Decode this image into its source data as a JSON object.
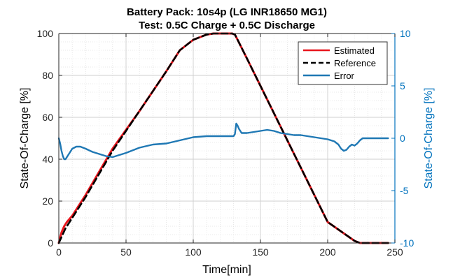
{
  "chart_data": {
    "type": "line",
    "title": [
      "Battery Pack: 10s4p (LG INR18650 MG1)",
      "Test: 0.5C Charge + 0.5C Discharge"
    ],
    "xlabel": "Time[min]",
    "ylabel_left": "State-Of-Charge [%]",
    "ylabel_right": "State-Of-Charge [%]",
    "xlim": [
      0,
      250
    ],
    "ylim_left": [
      0,
      100
    ],
    "ylim_right": [
      -10,
      10
    ],
    "xticks": [
      0,
      50,
      100,
      150,
      200,
      250
    ],
    "yticks_left": [
      0,
      20,
      40,
      60,
      80,
      100
    ],
    "yticks_right": [
      -10,
      -5,
      0,
      5,
      10
    ],
    "grid": true,
    "legend_position": "top-right",
    "colors": {
      "estimated": "#e8161d",
      "reference": "#000000",
      "error": "#1f78b4",
      "right_axis": "#0072bd",
      "grid": "#cfcfcf"
    },
    "series": [
      {
        "name": "Estimated",
        "axis": "left",
        "style": "solid",
        "x": [
          0,
          2,
          4,
          6,
          10,
          20,
          40,
          60,
          80,
          90,
          100,
          110,
          115,
          120,
          127,
          129,
          131,
          133,
          140,
          160,
          180,
          200,
          220,
          224,
          226,
          245
        ],
        "y": [
          0,
          5,
          8,
          10,
          13,
          23,
          45,
          63,
          82,
          92,
          97,
          99.5,
          100,
          100,
          100,
          100,
          99.5,
          97,
          88,
          62,
          36,
          10,
          1,
          0,
          0,
          0
        ]
      },
      {
        "name": "Reference",
        "axis": "left",
        "style": "dashed",
        "x": [
          0,
          5,
          10,
          20,
          40,
          60,
          80,
          90,
          100,
          110,
          115,
          120,
          127,
          129,
          131,
          133,
          140,
          160,
          180,
          200,
          220,
          224,
          226,
          245
        ],
        "y": [
          0,
          7,
          12,
          22,
          44,
          63,
          82,
          92,
          97,
          99.5,
          100,
          100,
          100,
          100,
          99.5,
          97,
          88,
          62,
          36,
          10,
          1,
          0,
          0,
          0
        ]
      },
      {
        "name": "Error",
        "axis": "right",
        "style": "solid",
        "x": [
          0,
          1,
          2,
          3,
          4,
          5,
          6,
          8,
          10,
          13,
          16,
          20,
          25,
          30,
          35,
          40,
          50,
          60,
          70,
          80,
          90,
          100,
          110,
          120,
          130,
          131,
          132,
          133,
          134,
          136,
          140,
          145,
          150,
          155,
          160,
          165,
          170,
          175,
          180,
          185,
          190,
          195,
          200,
          205,
          208,
          210,
          212,
          214,
          216,
          218,
          220,
          222,
          224,
          226,
          230,
          235,
          240,
          245
        ],
        "y": [
          0,
          -0.5,
          -1.2,
          -1.7,
          -2.0,
          -2.0,
          -1.8,
          -1.4,
          -1.0,
          -0.8,
          -0.8,
          -1.0,
          -1.3,
          -1.5,
          -1.7,
          -1.8,
          -1.4,
          -0.9,
          -0.6,
          -0.5,
          -0.2,
          0.1,
          0.2,
          0.2,
          0.2,
          0.4,
          1.4,
          1.2,
          0.9,
          0.5,
          0.5,
          0.6,
          0.7,
          0.8,
          0.7,
          0.5,
          0.4,
          0.3,
          0.3,
          0.2,
          0.1,
          0.0,
          -0.1,
          -0.3,
          -0.6,
          -1.0,
          -1.2,
          -1.1,
          -0.8,
          -0.6,
          -0.7,
          -0.5,
          -0.2,
          0,
          0,
          0,
          0,
          0
        ]
      }
    ]
  }
}
